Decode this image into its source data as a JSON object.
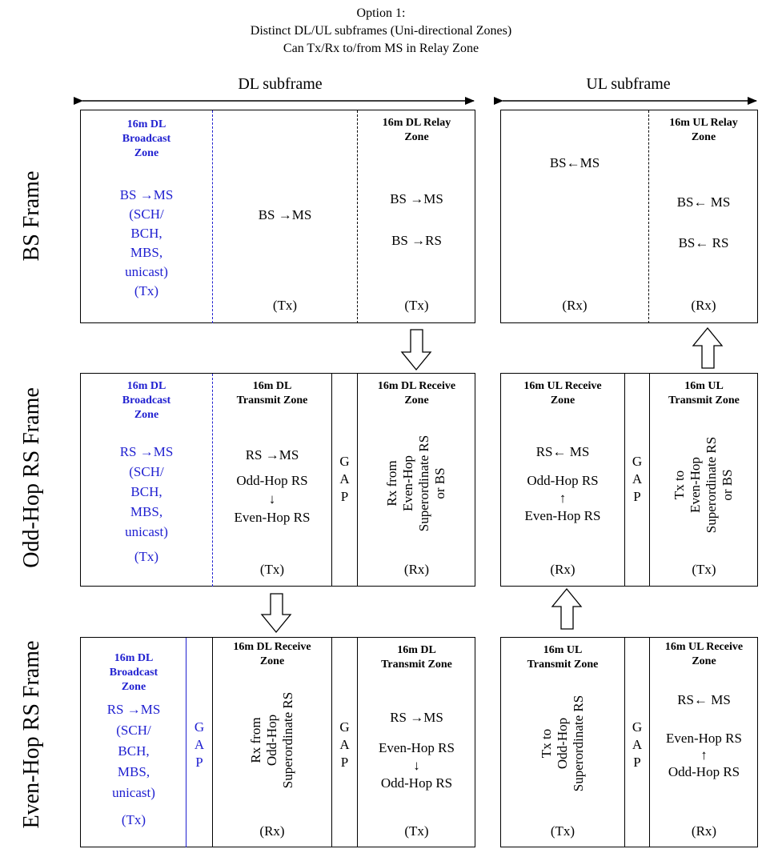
{
  "title": {
    "line1": "Option 1:",
    "line2": "Distinct DL/UL subframes (Uni-directional Zones)",
    "line3": "Can Tx/Rx to/from MS in Relay Zone"
  },
  "headers": {
    "dl": "DL subframe",
    "ul": "UL subframe"
  },
  "rows": {
    "bs": "BS Frame",
    "odd": "Odd-Hop RS Frame",
    "even": "Even-Hop RS Frame"
  },
  "bs": {
    "broadcast": {
      "t1": "16m DL",
      "t2": "Broadcast",
      "t3": "Zone",
      "l1": "BS →MS",
      "l2": "(SCH/",
      "l3": "BCH,",
      "l4": "MBS,",
      "l5": "unicast)",
      "l6": "(Tx)"
    },
    "dl_mid": {
      "text": "BS →MS",
      "tx": "(Tx)"
    },
    "dl_relay": {
      "t1": "16m DL Relay",
      "t2": "Zone",
      "l1": "BS →MS",
      "l2": "BS →RS",
      "tx": "(Tx)"
    },
    "ul_left": {
      "text": "BS←MS",
      "rx": "(Rx)"
    },
    "ul_relay": {
      "t1": "16m UL Relay",
      "t2": "Zone",
      "l1": "BS← MS",
      "l2": "BS← RS",
      "rx": "(Rx)"
    }
  },
  "odd": {
    "broadcast": {
      "t1": "16m DL",
      "t2": "Broadcast",
      "t3": "Zone",
      "l1": "RS →MS",
      "l2": "(SCH/",
      "l3": "BCH,",
      "l4": "MBS,",
      "l5": "unicast)",
      "l6": "(Tx)"
    },
    "dl_tx": {
      "t1": "16m DL",
      "t2": "Transmit Zone",
      "l1": "RS →MS",
      "l2": "Odd-Hop RS",
      "arrow": "↓",
      "l3": "Even-Hop RS",
      "tx": "(Tx)"
    },
    "gap": {
      "g": "G",
      "a": "A",
      "p": "P"
    },
    "dl_rx": {
      "t1": "16m DL Receive",
      "t2": "Zone",
      "v1": "Rx from",
      "v2": "Even-Hop",
      "v3": "Superordinate RS",
      "v4": "or BS",
      "rx": "(Rx)"
    },
    "ul_rx": {
      "t1": "16m UL Receive",
      "t2": "Zone",
      "l1": "RS← MS",
      "l2": "Odd-Hop RS",
      "arrow": "↑",
      "l3": "Even-Hop RS",
      "rx": "(Rx)"
    },
    "gap2": {
      "g": "G",
      "a": "A",
      "p": "P"
    },
    "ul_tx": {
      "t1": "16m UL",
      "t2": "Transmit Zone",
      "v1": "Tx to",
      "v2": "Even-Hop",
      "v3": "Superordinate RS",
      "v4": "or BS",
      "tx": "(Tx)"
    }
  },
  "even": {
    "broadcast": {
      "t1": "16m DL",
      "t2": "Broadcast",
      "t3": "Zone",
      "l1": "RS →MS",
      "l2": "(SCH/",
      "l3": "BCH,",
      "l4": "MBS,",
      "l5": "unicast)",
      "l6": "(Tx)"
    },
    "gap0": {
      "g": "G",
      "a": "A",
      "p": "P"
    },
    "dl_rx": {
      "t1": "16m DL Receive",
      "t2": "Zone",
      "v1": "Rx from",
      "v2": "Odd-Hop",
      "v3": "Superordinate RS",
      "rx": "(Rx)"
    },
    "gap1": {
      "g": "G",
      "a": "A",
      "p": "P"
    },
    "dl_tx": {
      "t1": "16m DL",
      "t2": "Transmit Zone",
      "l1": "RS →MS",
      "l2": "Even-Hop RS",
      "arrow": "↓",
      "l3": "Odd-Hop RS",
      "tx": "(Tx)"
    },
    "ul_tx": {
      "t1": "16m UL",
      "t2": "Transmit Zone",
      "v1": "Tx to",
      "v2": "Odd-Hop",
      "v3": "Superordinate RS",
      "tx": "(Tx)"
    },
    "gap2": {
      "g": "G",
      "a": "A",
      "p": "P"
    },
    "ul_rx": {
      "t1": "16m UL Receive",
      "t2": "Zone",
      "l1": "RS← MS",
      "l2": "Even-Hop RS",
      "arrow": "↑",
      "l3": "Odd-Hop RS",
      "rx": "(Rx)"
    }
  },
  "colors": {
    "broadcast_text": "#1f1fd0",
    "line": "#000000"
  }
}
